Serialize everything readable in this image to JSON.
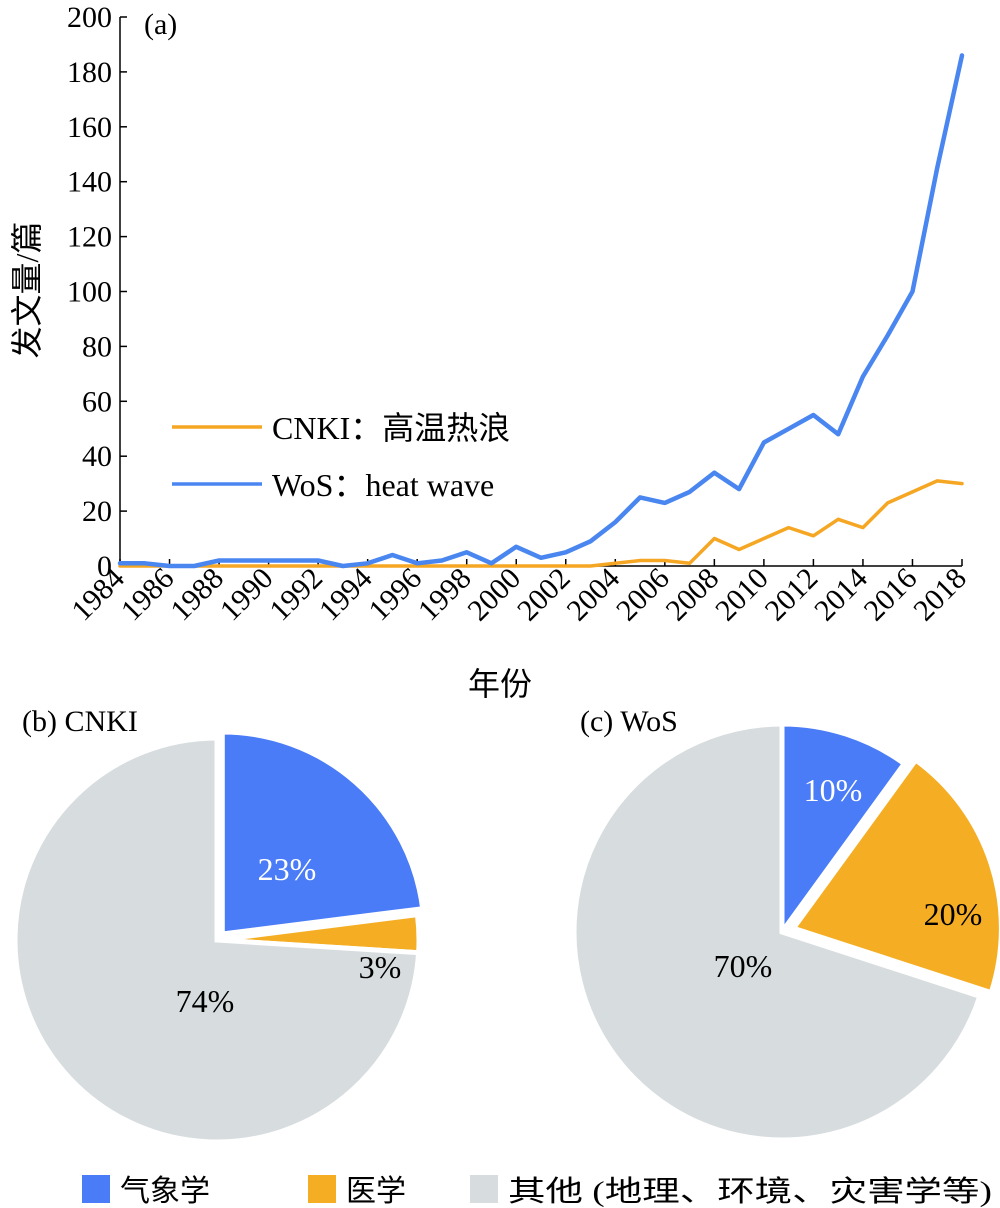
{
  "chart_data": [
    {
      "type": "line",
      "panel_label": "(a)",
      "title": "",
      "xlabel": "年份",
      "ylabel": "发文量/篇",
      "xlim": [
        1984,
        2018
      ],
      "ylim": [
        0,
        200
      ],
      "x_ticks": [
        "1984",
        "1986",
        "1988",
        "1990",
        "1992",
        "1994",
        "1996",
        "1998",
        "2000",
        "2002",
        "2004",
        "2006",
        "2008",
        "2010",
        "2012",
        "2014",
        "2016",
        "2018"
      ],
      "y_ticks": [
        0,
        20,
        40,
        60,
        80,
        100,
        120,
        140,
        160,
        180,
        200
      ],
      "x": [
        1984,
        1985,
        1986,
        1987,
        1988,
        1989,
        1990,
        1991,
        1992,
        1993,
        1994,
        1995,
        1996,
        1997,
        1998,
        1999,
        2000,
        2001,
        2002,
        2003,
        2004,
        2005,
        2006,
        2007,
        2008,
        2009,
        2010,
        2011,
        2012,
        2013,
        2014,
        2015,
        2016,
        2017,
        2018
      ],
      "legend_position": "center-left",
      "series": [
        {
          "name": "CNKI：高温热浪",
          "color": "#F5A623",
          "values": [
            0,
            0,
            0,
            0,
            0,
            0,
            0,
            0,
            0,
            0,
            0,
            0,
            0,
            0,
            0,
            0,
            0,
            0,
            0,
            0,
            1,
            2,
            2,
            1,
            10,
            6,
            10,
            14,
            11,
            17,
            14,
            23,
            27,
            31,
            30
          ]
        },
        {
          "name": "WoS：heat wave",
          "color": "#4A86F0",
          "values": [
            1,
            1,
            0,
            0,
            2,
            2,
            2,
            2,
            2,
            0,
            1,
            4,
            1,
            2,
            5,
            1,
            7,
            3,
            5,
            9,
            16,
            25,
            23,
            27,
            34,
            28,
            45,
            50,
            55,
            48,
            69,
            84,
            100,
            145,
            186
          ]
        }
      ]
    },
    {
      "type": "pie",
      "panel_label": "(b) CNKI",
      "slices": [
        {
          "category": "气象学",
          "value": 23,
          "label": "23%",
          "color": "#4A7CF7",
          "exploded": true
        },
        {
          "category": "医学",
          "value": 3,
          "label": "3%",
          "color": "#F5AE24",
          "exploded": false
        },
        {
          "category": "其他 (地理、环境、灾害学等)",
          "value": 74,
          "label": "74%",
          "color": "#D7DCDE",
          "exploded": false
        }
      ]
    },
    {
      "type": "pie",
      "panel_label": "(c) WoS",
      "slices": [
        {
          "category": "气象学",
          "value": 10,
          "label": "10%",
          "color": "#4A7CF7",
          "exploded": false
        },
        {
          "category": "医学",
          "value": 20,
          "label": "20%",
          "color": "#F5AE24",
          "exploded": true
        },
        {
          "category": "其他 (地理、环境、灾害学等)",
          "value": 70,
          "label": "70%",
          "color": "#D7DCDE",
          "exploded": false
        }
      ]
    }
  ],
  "legend": {
    "items": [
      {
        "label": "气象学",
        "color": "#4A7CF7"
      },
      {
        "label": "医学",
        "color": "#F5AE24"
      },
      {
        "label": "其他 (地理、环境、灾害学等)",
        "color": "#D7DCDE"
      }
    ]
  }
}
